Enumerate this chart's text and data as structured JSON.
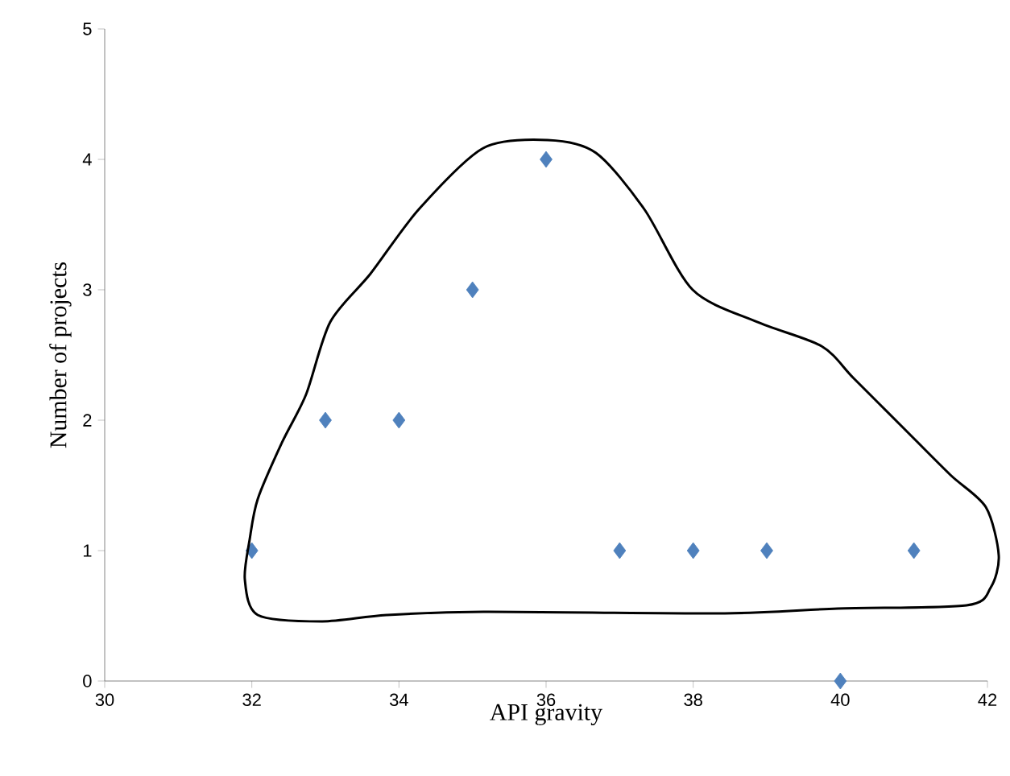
{
  "chart_data": {
    "type": "scatter",
    "xlabel": "API gravity",
    "ylabel": "Number of projects",
    "x": [
      32,
      33,
      34,
      35,
      36,
      37,
      38,
      39,
      40,
      41
    ],
    "values": [
      1,
      2,
      2,
      3,
      4,
      1,
      1,
      1,
      0,
      1
    ],
    "color": "#4f81bd",
    "marker": "diamond",
    "xlim": [
      30,
      42
    ],
    "ylim": [
      0,
      5
    ],
    "xticks": [
      30,
      32,
      34,
      36,
      38,
      40,
      42
    ],
    "yticks": [
      0,
      1,
      2,
      3,
      4,
      5
    ]
  }
}
